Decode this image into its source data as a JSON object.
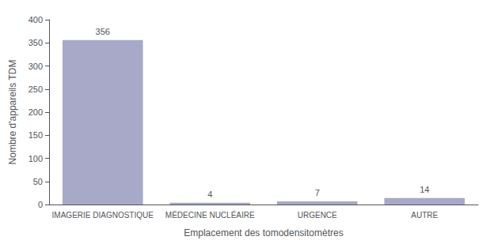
{
  "chart_data": {
    "type": "bar",
    "categories": [
      "IMAGERIE DIAGNOSTIQUE",
      "MÉDECINE NUCLÉAIRE",
      "URGENCE",
      "AUTRE"
    ],
    "values": [
      356,
      4,
      7,
      14
    ],
    "color": "#a8a8c8",
    "xlabel": "Emplacement des tomodensitomètres",
    "ylabel": "Nombre d'appareils TDM",
    "ylim": [
      0,
      400
    ],
    "yticks": [
      0,
      50,
      100,
      150,
      200,
      250,
      300,
      350,
      400
    ],
    "grid": false,
    "data_labels": true
  }
}
